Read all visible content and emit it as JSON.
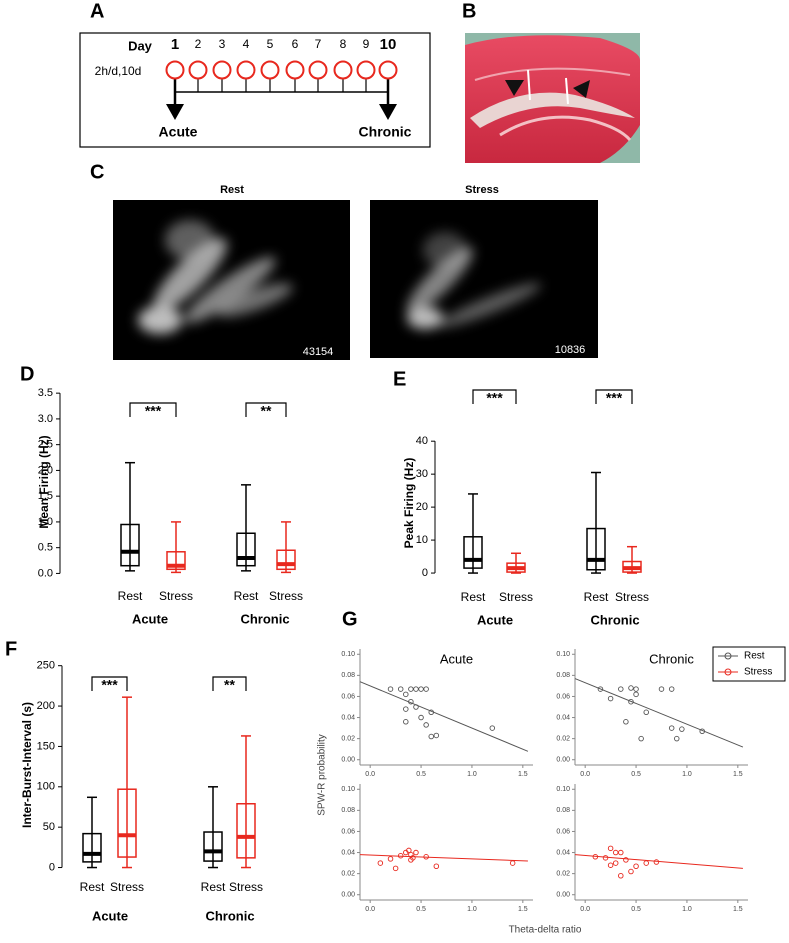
{
  "timeline": {
    "panel": "A",
    "day_label": "Day",
    "days": [
      1,
      2,
      3,
      4,
      5,
      6,
      7,
      8,
      9,
      10
    ],
    "schedule": "2h/d,10d",
    "start": "Acute",
    "end": "Chronic"
  },
  "histology": {
    "panel": "B"
  },
  "clusters": {
    "panel": "C",
    "plots": [
      {
        "title": "Rest",
        "count": 43154
      },
      {
        "title": "Stress",
        "count": 10836
      }
    ]
  },
  "panel_g": {
    "panel": "G",
    "ylabel": "SPW-R probability",
    "xlabel": "Theta-delta ratio"
  },
  "chart_data": [
    {
      "type": "box",
      "panel": "D",
      "ylabel": "Mean Firing (Hz)",
      "categories": [
        "Rest",
        "Stress",
        "Rest",
        "Stress"
      ],
      "groups": [
        "Acute",
        "Chronic"
      ],
      "colors": [
        "#000000",
        "#e8281e",
        "#000000",
        "#e8281e"
      ],
      "whisker_low": [
        0.05,
        0.02,
        0.05,
        0.02
      ],
      "q1": [
        0.15,
        0.08,
        0.15,
        0.08
      ],
      "median": [
        0.42,
        0.15,
        0.3,
        0.18
      ],
      "q3": [
        0.95,
        0.42,
        0.78,
        0.45
      ],
      "whisker_high": [
        2.15,
        1.0,
        1.72,
        1.0
      ],
      "significance": [
        "***",
        "**"
      ],
      "ylim": [
        -0.05,
        3.6
      ],
      "yticks": [
        {
          "value": 0,
          "label": "0.0"
        },
        {
          "value": 0.5,
          "label": "0.5"
        },
        {
          "value": 1,
          "label": "1.0"
        },
        {
          "value": 1.5,
          "label": "1.5"
        },
        {
          "value": 2,
          "label": "2.0"
        },
        {
          "value": 2.5,
          "label": "2.5"
        },
        {
          "value": 3,
          "label": "3.0"
        },
        {
          "value": 3.5,
          "label": "3.5"
        }
      ]
    },
    {
      "type": "box",
      "panel": "E",
      "ylabel": "Peak Firing (Hz)",
      "categories": [
        "Rest",
        "Stress",
        "Rest",
        "Stress"
      ],
      "groups": [
        "Acute",
        "Chronic"
      ],
      "colors": [
        "#000000",
        "#e8281e",
        "#000000",
        "#e8281e"
      ],
      "whisker_low": [
        0,
        0,
        0,
        0
      ],
      "q1": [
        1.5,
        0.3,
        1,
        0.3
      ],
      "median": [
        4,
        1.5,
        4,
        1.5
      ],
      "q3": [
        11,
        3,
        13.5,
        3.5
      ],
      "whisker_high": [
        24,
        6,
        30.5,
        8
      ],
      "significance": [
        "***",
        "***"
      ],
      "ylim": [
        -1.5,
        44
      ],
      "yticks": [
        0,
        10,
        20,
        30,
        40
      ]
    },
    {
      "type": "box",
      "panel": "F",
      "ylabel": "Inter-Burst-Interval (s)",
      "categories": [
        "Rest",
        "Stress",
        "Rest",
        "Stress"
      ],
      "groups": [
        "Acute",
        "Chronic"
      ],
      "colors": [
        "#000000",
        "#e8281e",
        "#000000",
        "#e8281e"
      ],
      "whisker_low": [
        0,
        0,
        0,
        0
      ],
      "q1": [
        7,
        13,
        8,
        12
      ],
      "median": [
        17,
        40,
        20,
        38
      ],
      "q3": [
        42,
        97,
        44,
        79
      ],
      "whisker_high": [
        87,
        211,
        100,
        163
      ],
      "significance": [
        "***",
        "**"
      ],
      "ylim": [
        -8,
        262
      ],
      "yticks": [
        0,
        50,
        100,
        150,
        200,
        250
      ]
    },
    {
      "type": "scatter",
      "title": "Acute",
      "x": [
        0.2,
        0.3,
        0.35,
        0.4,
        0.45,
        0.5,
        0.55,
        0.4,
        0.35,
        0.45,
        0.6,
        0.55,
        0.35,
        0.6,
        0.65,
        1.2,
        0.5
      ],
      "series": [
        {
          "name": "Rest",
          "color": "#555555",
          "values": [
            0.067,
            0.067,
            0.062,
            0.067,
            0.067,
            0.067,
            0.067,
            0.055,
            0.048,
            0.05,
            0.045,
            0.033,
            0.036,
            0.022,
            0.023,
            0.03,
            0.04
          ]
        }
      ],
      "fit": {
        "x": [
          -0.1,
          1.55
        ],
        "values": [
          0.074,
          0.008
        ],
        "color": "#555555"
      },
      "xlim": [
        -0.1,
        1.6
      ],
      "ylim": [
        -0.005,
        0.105
      ],
      "xticks": [
        {
          "value": 0,
          "label": "0.0"
        },
        {
          "value": 0.5,
          "label": "0.5"
        },
        {
          "value": 1,
          "label": "1.0"
        },
        {
          "value": 1.5,
          "label": "1.5"
        }
      ],
      "yticks": [
        {
          "value": 0,
          "label": "0.00"
        },
        {
          "value": 0.02,
          "label": "0.02"
        },
        {
          "value": 0.04,
          "label": "0.04"
        },
        {
          "value": 0.06,
          "label": "0.06"
        },
        {
          "value": 0.08,
          "label": "0.08"
        },
        {
          "value": 0.1,
          "label": "0.10"
        }
      ]
    },
    {
      "type": "scatter",
      "title": "Chronic",
      "x": [
        0.15,
        0.35,
        0.45,
        0.5,
        0.5,
        0.75,
        0.85,
        0.45,
        0.6,
        0.85,
        0.95,
        1.15,
        0.4,
        0.55,
        0.9,
        0.25
      ],
      "series": [
        {
          "name": "Rest",
          "color": "#555555",
          "values": [
            0.067,
            0.067,
            0.068,
            0.067,
            0.062,
            0.067,
            0.067,
            0.055,
            0.045,
            0.03,
            0.029,
            0.027,
            0.036,
            0.02,
            0.02,
            0.058
          ]
        }
      ],
      "fit": {
        "x": [
          -0.1,
          1.55
        ],
        "values": [
          0.077,
          0.012
        ],
        "color": "#555555"
      },
      "xlim": [
        -0.1,
        1.6
      ],
      "ylim": [
        -0.005,
        0.105
      ],
      "xticks": [
        {
          "value": 0,
          "label": "0.0"
        },
        {
          "value": 0.5,
          "label": "0.5"
        },
        {
          "value": 1,
          "label": "1.0"
        },
        {
          "value": 1.5,
          "label": "1.5"
        }
      ],
      "yticks": [
        {
          "value": 0,
          "label": "0.00"
        },
        {
          "value": 0.02,
          "label": "0.02"
        },
        {
          "value": 0.04,
          "label": "0.04"
        },
        {
          "value": 0.06,
          "label": "0.06"
        },
        {
          "value": 0.08,
          "label": "0.08"
        },
        {
          "value": 0.1,
          "label": "0.10"
        }
      ]
    },
    {
      "type": "scatter",
      "x": [
        0.1,
        0.2,
        0.25,
        0.3,
        0.35,
        0.38,
        0.4,
        0.42,
        0.45,
        0.55,
        0.65,
        1.4,
        0.4
      ],
      "series": [
        {
          "name": "Stress",
          "color": "#e8281e",
          "values": [
            0.03,
            0.034,
            0.025,
            0.037,
            0.04,
            0.042,
            0.038,
            0.035,
            0.04,
            0.036,
            0.027,
            0.03,
            0.033
          ]
        }
      ],
      "fit": {
        "x": [
          -0.1,
          1.55
        ],
        "values": [
          0.038,
          0.032
        ],
        "color": "#e8281e"
      },
      "xlim": [
        -0.1,
        1.6
      ],
      "ylim": [
        -0.005,
        0.105
      ],
      "xticks": [
        {
          "value": 0,
          "label": "0.0"
        },
        {
          "value": 0.5,
          "label": "0.5"
        },
        {
          "value": 1,
          "label": "1.0"
        },
        {
          "value": 1.5,
          "label": "1.5"
        }
      ],
      "yticks": [
        {
          "value": 0,
          "label": "0.00"
        },
        {
          "value": 0.02,
          "label": "0.02"
        },
        {
          "value": 0.04,
          "label": "0.04"
        },
        {
          "value": 0.06,
          "label": "0.06"
        },
        {
          "value": 0.08,
          "label": "0.08"
        },
        {
          "value": 0.1,
          "label": "0.10"
        }
      ]
    },
    {
      "type": "scatter",
      "x": [
        0.1,
        0.2,
        0.25,
        0.3,
        0.3,
        0.35,
        0.25,
        0.35,
        0.45,
        0.5,
        0.6,
        0.7,
        0.4
      ],
      "series": [
        {
          "name": "Stress",
          "color": "#e8281e",
          "values": [
            0.036,
            0.035,
            0.044,
            0.04,
            0.03,
            0.04,
            0.028,
            0.018,
            0.022,
            0.027,
            0.03,
            0.031,
            0.033
          ]
        }
      ],
      "fit": {
        "x": [
          -0.1,
          1.55
        ],
        "values": [
          0.038,
          0.025
        ],
        "color": "#e8281e"
      },
      "xlim": [
        -0.1,
        1.6
      ],
      "ylim": [
        -0.005,
        0.105
      ],
      "xticks": [
        {
          "value": 0,
          "label": "0.0"
        },
        {
          "value": 0.5,
          "label": "0.5"
        },
        {
          "value": 1,
          "label": "1.0"
        },
        {
          "value": 1.5,
          "label": "1.5"
        }
      ],
      "yticks": [
        {
          "value": 0,
          "label": "0.00"
        },
        {
          "value": 0.02,
          "label": "0.02"
        },
        {
          "value": 0.04,
          "label": "0.04"
        },
        {
          "value": 0.06,
          "label": "0.06"
        },
        {
          "value": 0.08,
          "label": "0.08"
        },
        {
          "value": 0.1,
          "label": "0.10"
        }
      ]
    }
  ]
}
